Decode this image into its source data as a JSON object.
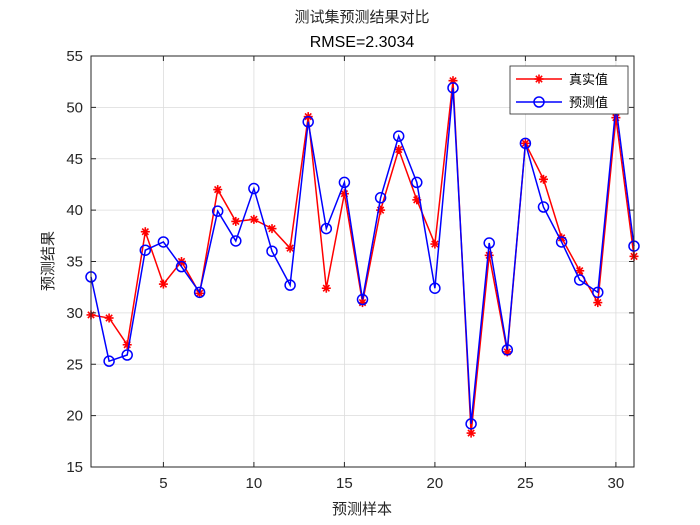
{
  "chart_data": {
    "type": "line",
    "title": "测试集预测结果对比",
    "subtitle": "RMSE=2.3034",
    "xlabel": "预测样本",
    "ylabel": "预测结果",
    "xlim": [
      1,
      31
    ],
    "ylim": [
      15,
      55
    ],
    "xticks": [
      5,
      10,
      15,
      20,
      25,
      30
    ],
    "yticks": [
      15,
      20,
      25,
      30,
      35,
      40,
      45,
      50,
      55
    ],
    "grid": true,
    "legend_position": "top-right",
    "x": [
      1,
      2,
      3,
      4,
      5,
      6,
      7,
      8,
      9,
      10,
      11,
      12,
      13,
      14,
      15,
      16,
      17,
      18,
      19,
      20,
      21,
      22,
      23,
      24,
      25,
      26,
      27,
      28,
      29,
      30,
      31
    ],
    "series": [
      {
        "name": "真实值",
        "color": "#ff0000",
        "marker": "asterisk",
        "values": [
          29.8,
          29.5,
          26.9,
          37.9,
          32.8,
          35.0,
          31.9,
          42.0,
          38.9,
          39.1,
          38.2,
          36.3,
          49.1,
          32.4,
          41.6,
          31.0,
          40.0,
          45.9,
          41.0,
          36.7,
          52.6,
          18.3,
          35.6,
          26.2,
          46.5,
          43.0,
          37.3,
          34.1,
          31.0,
          49.0,
          35.5
        ]
      },
      {
        "name": "预测值",
        "color": "#0000ff",
        "marker": "circle",
        "values": [
          33.5,
          25.3,
          25.9,
          36.1,
          36.9,
          34.5,
          32.0,
          39.9,
          37.0,
          42.1,
          36.0,
          32.7,
          48.6,
          38.2,
          42.7,
          31.3,
          41.2,
          47.2,
          42.7,
          32.4,
          51.9,
          19.2,
          36.8,
          26.4,
          46.5,
          40.3,
          36.9,
          33.2,
          32.0,
          50.1,
          36.5
        ]
      }
    ]
  }
}
